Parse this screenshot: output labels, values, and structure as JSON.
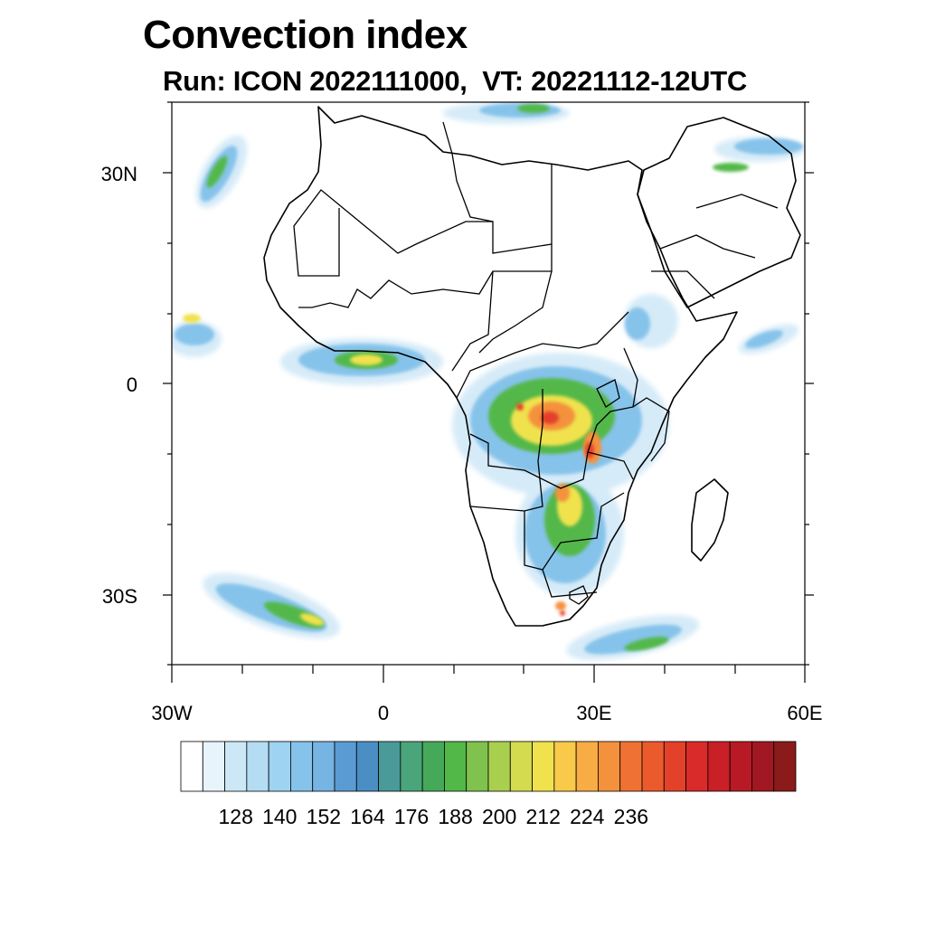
{
  "title": "Convection index",
  "subtitle": "Run: ICON 2022111000,  VT: 20221112-12UTC",
  "axes": {
    "lat_labels": [
      "30N",
      "0",
      "30S"
    ],
    "lon_labels": [
      "30W",
      "0",
      "30E",
      "60E"
    ],
    "lat_range": [
      -40,
      40
    ],
    "lon_range": [
      -30,
      60
    ]
  },
  "colorbar": {
    "labels": [
      "128",
      "140",
      "152",
      "164",
      "176",
      "188",
      "200",
      "212",
      "224",
      "236"
    ],
    "colors": [
      "#ffffff",
      "#e8f4fc",
      "#cce8f7",
      "#b4dcf3",
      "#9ed3f2",
      "#86c3ea",
      "#75b4e3",
      "#5b9bd3",
      "#4a8ec4",
      "#4a9a9a",
      "#4aa57a",
      "#46a95a",
      "#52b848",
      "#7fc24e",
      "#a9cf4f",
      "#d4db4f",
      "#f0e24d",
      "#f9c94a",
      "#f7ac44",
      "#f4913c",
      "#ef7234",
      "#eb5a2d",
      "#e3412a",
      "#d92b29",
      "#c91f27",
      "#b71a25",
      "#a11722",
      "#8b1a1a"
    ]
  },
  "colors": {
    "land_edge": "#000000",
    "low": "#9ed3f2",
    "mid": "#52b848",
    "high": "#f9c94a",
    "peak": "#e3412a"
  }
}
